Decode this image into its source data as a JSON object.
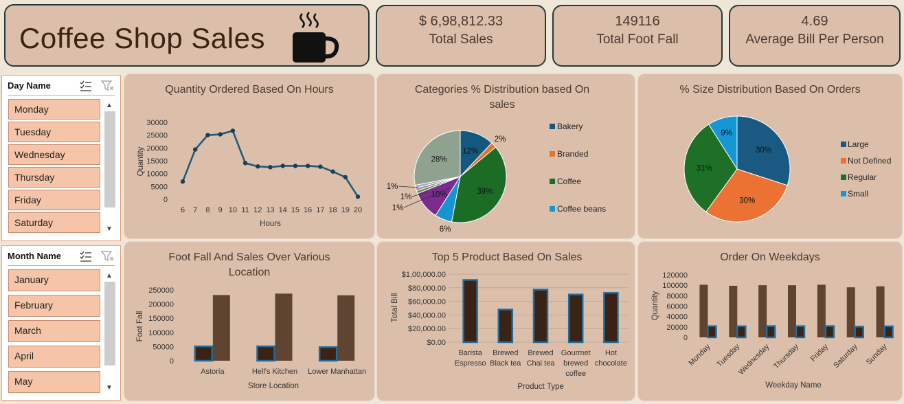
{
  "header": {
    "title": "Coffee Shop Sales"
  },
  "kpis": {
    "total_sales": {
      "value": "$ 6,98,812.33",
      "label": "Total Sales"
    },
    "total_foot_fall": {
      "value": "149116",
      "label": "Total Foot Fall"
    },
    "avg_bill": {
      "value": "4.69",
      "label": "Average Bill Per Person"
    }
  },
  "slicers": {
    "day": {
      "title": "Day Name",
      "items": [
        "Monday",
        "Tuesday",
        "Wednesday",
        "Thursday",
        "Friday",
        "Saturday"
      ]
    },
    "month": {
      "title": "Month Name",
      "items": [
        "January",
        "February",
        "March",
        "April",
        "May"
      ]
    }
  },
  "colors": {
    "panel": "#dcbfaa",
    "line": "#1f5a7e",
    "bar_dark": "#3a2314",
    "bar_brown": "#5e4431",
    "bar_edge": "#1f6c9e"
  },
  "chart_data": [
    {
      "id": "hours",
      "type": "line",
      "title": "Quantity Ordered Based On Hours",
      "xlabel": "Hours",
      "ylabel": "Quantity",
      "x": [
        6,
        7,
        8,
        9,
        10,
        11,
        12,
        13,
        14,
        15,
        16,
        17,
        18,
        19,
        20
      ],
      "values": [
        6900,
        19400,
        25000,
        25300,
        26700,
        14100,
        12800,
        12500,
        13000,
        13000,
        13000,
        12700,
        10800,
        8600,
        1000
      ],
      "ylim": [
        0,
        30000
      ],
      "yticks": [
        "0",
        "5000",
        "10000",
        "15000",
        "20000",
        "25000",
        "30000"
      ]
    },
    {
      "id": "categories",
      "type": "pie",
      "title": "Categories % Distribution based On sales",
      "slices": [
        {
          "name": "Bakery",
          "value": 12,
          "label": "12%",
          "color": "#15587e"
        },
        {
          "name": "Branded",
          "value": 2,
          "label": "2%",
          "color": "#e2742f"
        },
        {
          "name": "Coffee",
          "value": 39,
          "label": "39%",
          "color": "#1b6d25"
        },
        {
          "name": "Coffee beans",
          "value": 6,
          "label": "6%",
          "color": "#1495d2"
        },
        {
          "name": "",
          "value": 10,
          "label": "10%",
          "color": "#7b2b8e"
        },
        {
          "name": "",
          "value": 1,
          "label": "1%",
          "color": "#4c9e38"
        },
        {
          "name": "",
          "value": 1,
          "label": "1%",
          "color": "#c27cb5"
        },
        {
          "name": "",
          "value": 1,
          "label": "1%",
          "color": "#9ab0b8"
        },
        {
          "name": "",
          "value": 28,
          "label": "28%",
          "color": "#8fa290"
        }
      ],
      "legend": [
        "Bakery",
        "Branded",
        "Coffee",
        "Coffee beans"
      ]
    },
    {
      "id": "sizes",
      "type": "pie",
      "title": "% Size Distribution Based On Orders",
      "slices": [
        {
          "name": "Large",
          "value": 30,
          "label": "30%",
          "color": "#1a5a82"
        },
        {
          "name": "Not Defined",
          "value": 30,
          "label": "30%",
          "color": "#ec7233"
        },
        {
          "name": "Regular",
          "value": 31,
          "label": "31%",
          "color": "#1e7026"
        },
        {
          "name": "Small",
          "value": 9,
          "label": "9%",
          "color": "#1597d4"
        }
      ],
      "legend": [
        "Large",
        "Not Defined",
        "Regular",
        "Small"
      ]
    },
    {
      "id": "location",
      "type": "bar",
      "title": "Foot Fall And Sales Over Various Location",
      "xlabel": "Store Location",
      "ylabel": "Foot Fall",
      "categories": [
        "Astoria",
        "Hell's Kitchen",
        "Lower Manhattan"
      ],
      "series": [
        {
          "values": [
            50600,
            50700,
            47800
          ]
        },
        {
          "values": [
            232000,
            237000,
            231000
          ]
        }
      ],
      "ylim": [
        0,
        250000
      ],
      "yticks": [
        "0",
        "50000",
        "100000",
        "150000",
        "200000",
        "250000"
      ]
    },
    {
      "id": "products",
      "type": "bar",
      "title": "Top 5 Product Based On Sales",
      "xlabel": "Product Type",
      "ylabel": "Total Bill",
      "categories": [
        [
          "Barista",
          "Espresso"
        ],
        [
          "Brewed",
          "Black tea"
        ],
        [
          "Brewed",
          "Chai tea"
        ],
        [
          "Gourmet",
          "brewed",
          "coffee"
        ],
        [
          "Hot",
          "chocolate"
        ]
      ],
      "values": [
        91400,
        47900,
        77100,
        70000,
        72400
      ],
      "ylim": [
        0,
        100000
      ],
      "yticks": [
        "$0.00",
        "$20,000.00",
        "$40,000.00",
        "$60,000.00",
        "$80,000.00",
        "$1,00,000.00"
      ]
    },
    {
      "id": "weekdays",
      "type": "bar",
      "title": "Order On Weekdays",
      "xlabel": "Weekday Name",
      "ylabel": "Quantity",
      "categories": [
        "Monday",
        "Tuesday",
        "Wednesday",
        "Thursday",
        "Friday",
        "Saturday",
        "Sunday"
      ],
      "series": [
        {
          "values": [
            101000,
            99000,
            100000,
            100000,
            101000,
            96000,
            98000
          ]
        },
        {
          "values": [
            21500,
            21300,
            21600,
            21500,
            21600,
            20500,
            21200
          ]
        }
      ],
      "ylim": [
        0,
        120000
      ],
      "yticks": [
        "0",
        "20000",
        "40000",
        "60000",
        "80000",
        "100000",
        "120000"
      ]
    }
  ]
}
